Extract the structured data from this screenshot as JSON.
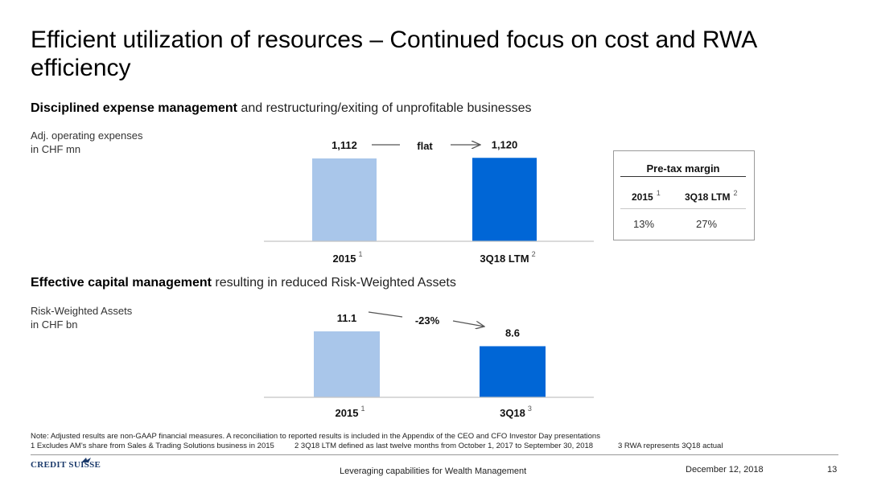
{
  "title": "Efficient utilization of resources – Continued focus on cost and RWA efficiency",
  "section1": {
    "heading_bold": "Disciplined expense management",
    "heading_rest": " and restructuring/exiting of unprofitable businesses",
    "ylabel_line1": "Adj. operating expenses",
    "ylabel_line2": "in CHF mn",
    "change_label": "flat"
  },
  "section2": {
    "heading_bold": "Effective capital management",
    "heading_rest": " resulting in reduced Risk-Weighted Assets",
    "ylabel_line1": "Risk-Weighted Assets",
    "ylabel_line2": "in CHF bn",
    "change_label": "-23%"
  },
  "chart_data": [
    {
      "type": "bar",
      "categories": [
        "2015",
        "3Q18 LTM"
      ],
      "category_footnotes": [
        "1",
        "2"
      ],
      "values": [
        1112,
        1120
      ],
      "value_labels": [
        "1,112",
        "1,120"
      ],
      "colors": [
        "#a9c6ea",
        "#0066d6"
      ]
    },
    {
      "type": "bar",
      "categories": [
        "2015",
        "3Q18"
      ],
      "category_footnotes": [
        "1",
        "3"
      ],
      "values": [
        11.1,
        8.6
      ],
      "value_labels": [
        "11.1",
        "8.6"
      ],
      "colors": [
        "#a9c6ea",
        "#0066d6"
      ]
    }
  ],
  "pretax_margin": {
    "title": "Pre-tax margin",
    "col1_label": "2015",
    "col1_note": "1",
    "col2_label": "3Q18 LTM",
    "col2_note": "2",
    "col1_value": "13%",
    "col2_value": "27%"
  },
  "notes": {
    "line1": "Note: Adjusted results are non-GAAP financial measures. A reconciliation to reported results is included in the Appendix of the CEO and CFO Investor Day presentations",
    "fn1": "1 Excludes AM's share from Sales & Trading Solutions business in 2015",
    "fn2": "2 3Q18 LTM defined as last twelve months from October 1, 2017 to September 30, 2018",
    "fn3": "3 RWA represents 3Q18 actual"
  },
  "footer": {
    "logo": "CREDIT SUISSE",
    "center": "Leveraging capabilities for Wealth Management",
    "date": "December 12, 2018",
    "page": "13"
  }
}
